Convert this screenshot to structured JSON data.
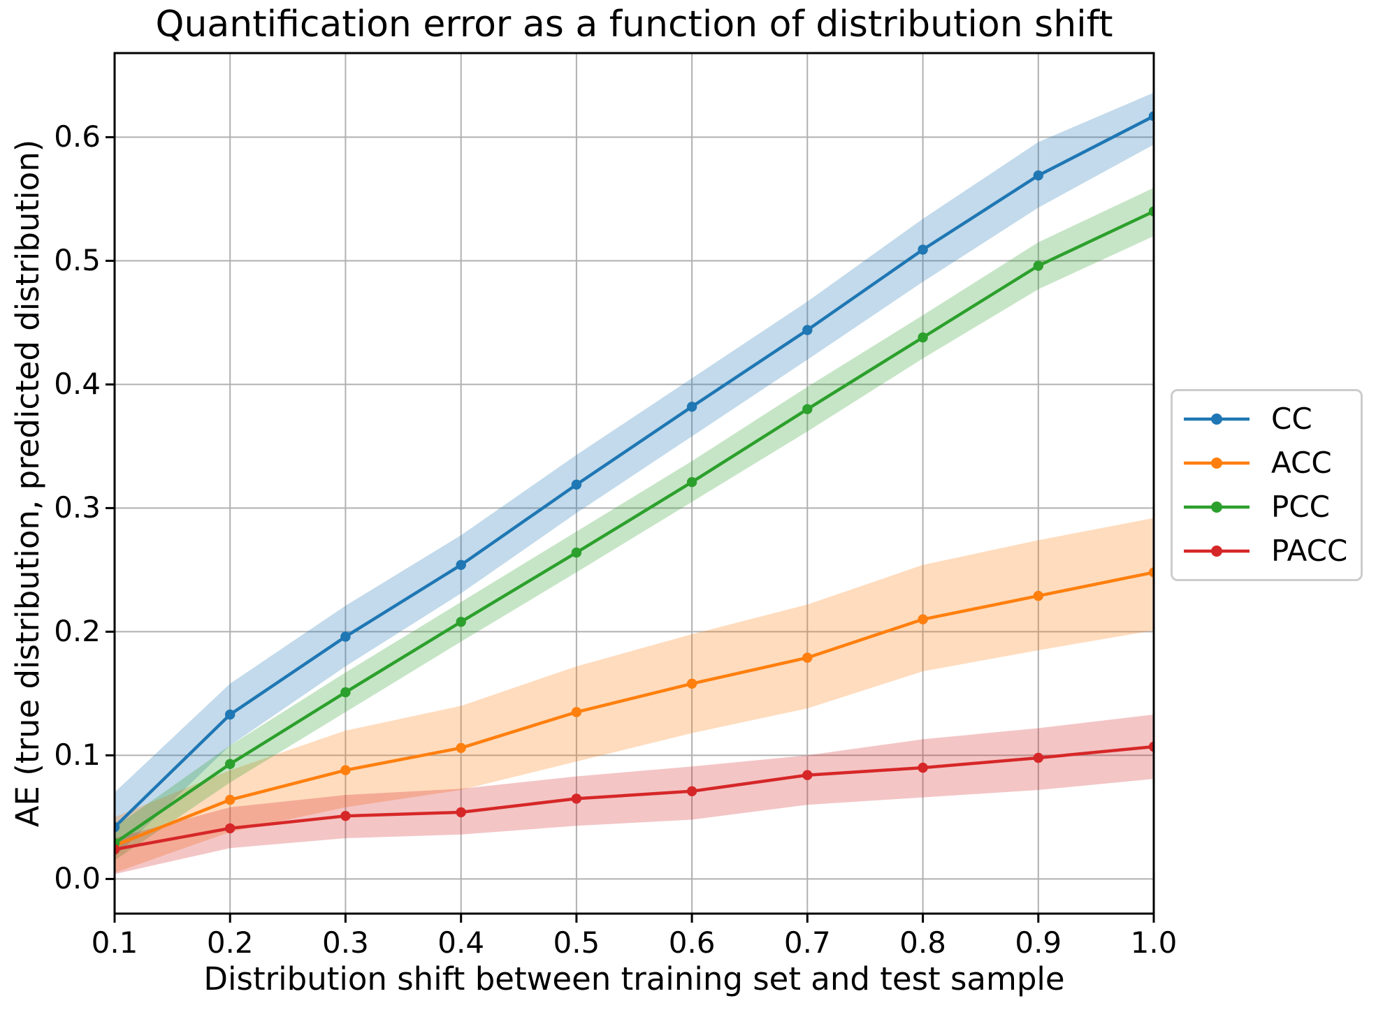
{
  "title": "Quantification error as a function of distribution shift",
  "legend": {
    "position": "center-right-outside",
    "entries": [
      "CC",
      "ACC",
      "PCC",
      "PACC"
    ]
  },
  "colors": {
    "CC": "#1f77b4",
    "ACC": "#ff7f0e",
    "PCC": "#2ca02c",
    "PACC": "#d62728",
    "grid": "#b0b0b0",
    "spine": "#000000",
    "legend_border": "#cccccc",
    "band_opacity": 0.27
  },
  "chart_data": {
    "type": "line",
    "title": "Quantification error as a function of distribution shift",
    "xlabel": "Distribution shift between training set and test sample",
    "ylabel": "AE (true distribution, predicted distribution)",
    "grid": true,
    "legend_position": "center right, outside axes",
    "x": [
      0.1,
      0.2,
      0.3,
      0.4,
      0.5,
      0.6,
      0.7,
      0.8,
      0.9,
      1.0
    ],
    "xlim": [
      0.1,
      1.0
    ],
    "ylim": [
      -0.028,
      0.668
    ],
    "xticks": [
      0.1,
      0.2,
      0.3,
      0.4,
      0.5,
      0.6,
      0.7,
      0.8,
      0.9,
      1.0
    ],
    "xtick_labels": [
      "0.1",
      "0.2",
      "0.3",
      "0.4",
      "0.5",
      "0.6",
      "0.7",
      "0.8",
      "0.9",
      "1.0"
    ],
    "yticks": [
      0.0,
      0.1,
      0.2,
      0.3,
      0.4,
      0.5,
      0.6
    ],
    "ytick_labels": [
      "0.0",
      "0.1",
      "0.2",
      "0.3",
      "0.4",
      "0.5",
      "0.6"
    ],
    "series": [
      {
        "name": "CC",
        "color": "#1f77b4",
        "values": [
          0.042,
          0.133,
          0.196,
          0.254,
          0.319,
          0.382,
          0.444,
          0.509,
          0.569,
          0.617
        ],
        "band_lower": [
          0.018,
          0.108,
          0.172,
          0.231,
          0.296,
          0.358,
          0.42,
          0.483,
          0.543,
          0.594
        ],
        "band_upper": [
          0.07,
          0.158,
          0.221,
          0.278,
          0.343,
          0.405,
          0.467,
          0.534,
          0.596,
          0.636
        ]
      },
      {
        "name": "ACC",
        "color": "#ff7f0e",
        "values": [
          0.027,
          0.064,
          0.088,
          0.106,
          0.135,
          0.158,
          0.179,
          0.21,
          0.229,
          0.248
        ],
        "band_lower": [
          0.005,
          0.038,
          0.058,
          0.072,
          0.095,
          0.118,
          0.138,
          0.168,
          0.185,
          0.201
        ],
        "band_upper": [
          0.05,
          0.088,
          0.12,
          0.14,
          0.172,
          0.198,
          0.222,
          0.254,
          0.274,
          0.292
        ]
      },
      {
        "name": "PCC",
        "color": "#2ca02c",
        "values": [
          0.029,
          0.093,
          0.151,
          0.208,
          0.264,
          0.321,
          0.38,
          0.438,
          0.496,
          0.54
        ],
        "band_lower": [
          0.015,
          0.078,
          0.135,
          0.192,
          0.248,
          0.305,
          0.362,
          0.421,
          0.477,
          0.52
        ],
        "band_upper": [
          0.042,
          0.108,
          0.167,
          0.224,
          0.281,
          0.338,
          0.398,
          0.456,
          0.515,
          0.559
        ]
      },
      {
        "name": "PACC",
        "color": "#d62728",
        "values": [
          0.024,
          0.041,
          0.051,
          0.054,
          0.065,
          0.071,
          0.084,
          0.09,
          0.098,
          0.107
        ],
        "band_lower": [
          0.004,
          0.025,
          0.033,
          0.036,
          0.043,
          0.048,
          0.06,
          0.066,
          0.072,
          0.081
        ],
        "band_upper": [
          0.033,
          0.058,
          0.068,
          0.073,
          0.083,
          0.091,
          0.1,
          0.113,
          0.122,
          0.133
        ]
      }
    ]
  }
}
